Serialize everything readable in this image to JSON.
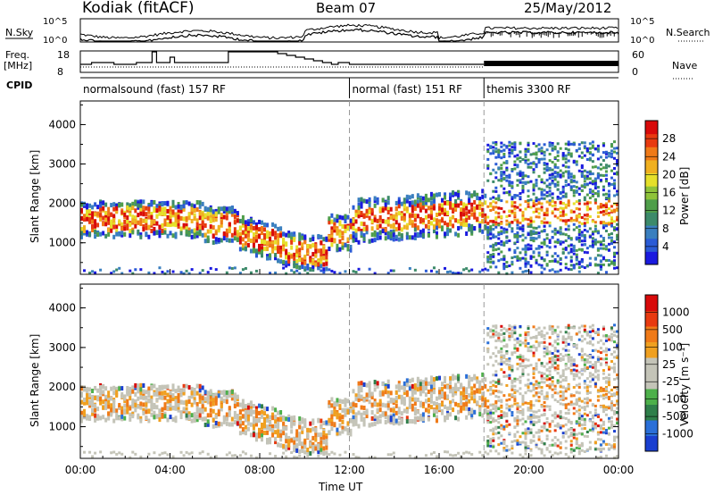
{
  "header": {
    "station": "Kodiak (fitACF)",
    "beam": "Beam 07",
    "date": "25/May/2012"
  },
  "top_panels": {
    "nsky_label": "N.Sky",
    "nsearch_label": "N.Search",
    "freq_label": "Freq.",
    "freq_unit": "[MHz]",
    "nave_label": "Nave",
    "cpid_label": "CPID",
    "nsky_ticks": [
      "10^5",
      "10^0"
    ],
    "nsearch_ticks": [
      "10^5",
      "10^0"
    ],
    "freq_ticks": [
      "18",
      "8"
    ],
    "nave_ticks": [
      "60",
      "0"
    ]
  },
  "cpid_segments": [
    {
      "label": "normalsound (fast) 157 RF",
      "start_h": 0,
      "end_h": 12
    },
    {
      "label": "normal (fast) 151 RF",
      "start_h": 12,
      "end_h": 18
    },
    {
      "label": "themis 3300 RF",
      "start_h": 18,
      "end_h": 24
    }
  ],
  "chart_data": [
    {
      "type": "heatmap",
      "name": "power",
      "ylabel": "Slant Range [km]",
      "yticks": [
        1000,
        2000,
        3000,
        4000
      ],
      "ylim": [
        200,
        4600
      ],
      "xlim": [
        0,
        24
      ],
      "colorbar_label": "Power [dB]",
      "colorbar_ticks": [
        "28",
        "24",
        "20",
        "16",
        "12",
        "8",
        "4"
      ],
      "colorbar_range": [
        0,
        30
      ]
    },
    {
      "type": "heatmap",
      "name": "velocity",
      "ylabel": "Slant Range [km]",
      "yticks": [
        1000,
        2000,
        3000,
        4000
      ],
      "ylim": [
        200,
        4600
      ],
      "xlim": [
        0,
        24
      ],
      "colorbar_label": "Velocity [m s⁻¹]",
      "colorbar_ticks": [
        "1000",
        "500",
        "100",
        "25",
        "-25",
        "-100",
        "-500",
        "-1000"
      ]
    }
  ],
  "xaxis": {
    "ticks": [
      "00:00",
      "04:00",
      "08:00",
      "12:00",
      "16:00",
      "20:00",
      "00:00"
    ],
    "label": "Time UT"
  },
  "colors": {
    "power_scale": [
      "#1a1adf",
      "#2a5bd6",
      "#3a7fbf",
      "#3c8a6a",
      "#4f9e4a",
      "#8fc33a",
      "#e6e02a",
      "#f0b020",
      "#f07a18",
      "#e83a10",
      "#d80a0a"
    ],
    "velocity_scale": [
      "#1a3fd0",
      "#2a6fd8",
      "#2f7f4a",
      "#4db04a",
      "#c4c4b8",
      "#c4c4b8",
      "#f0a020",
      "#f07a18",
      "#e83a10",
      "#d80a0a"
    ]
  }
}
